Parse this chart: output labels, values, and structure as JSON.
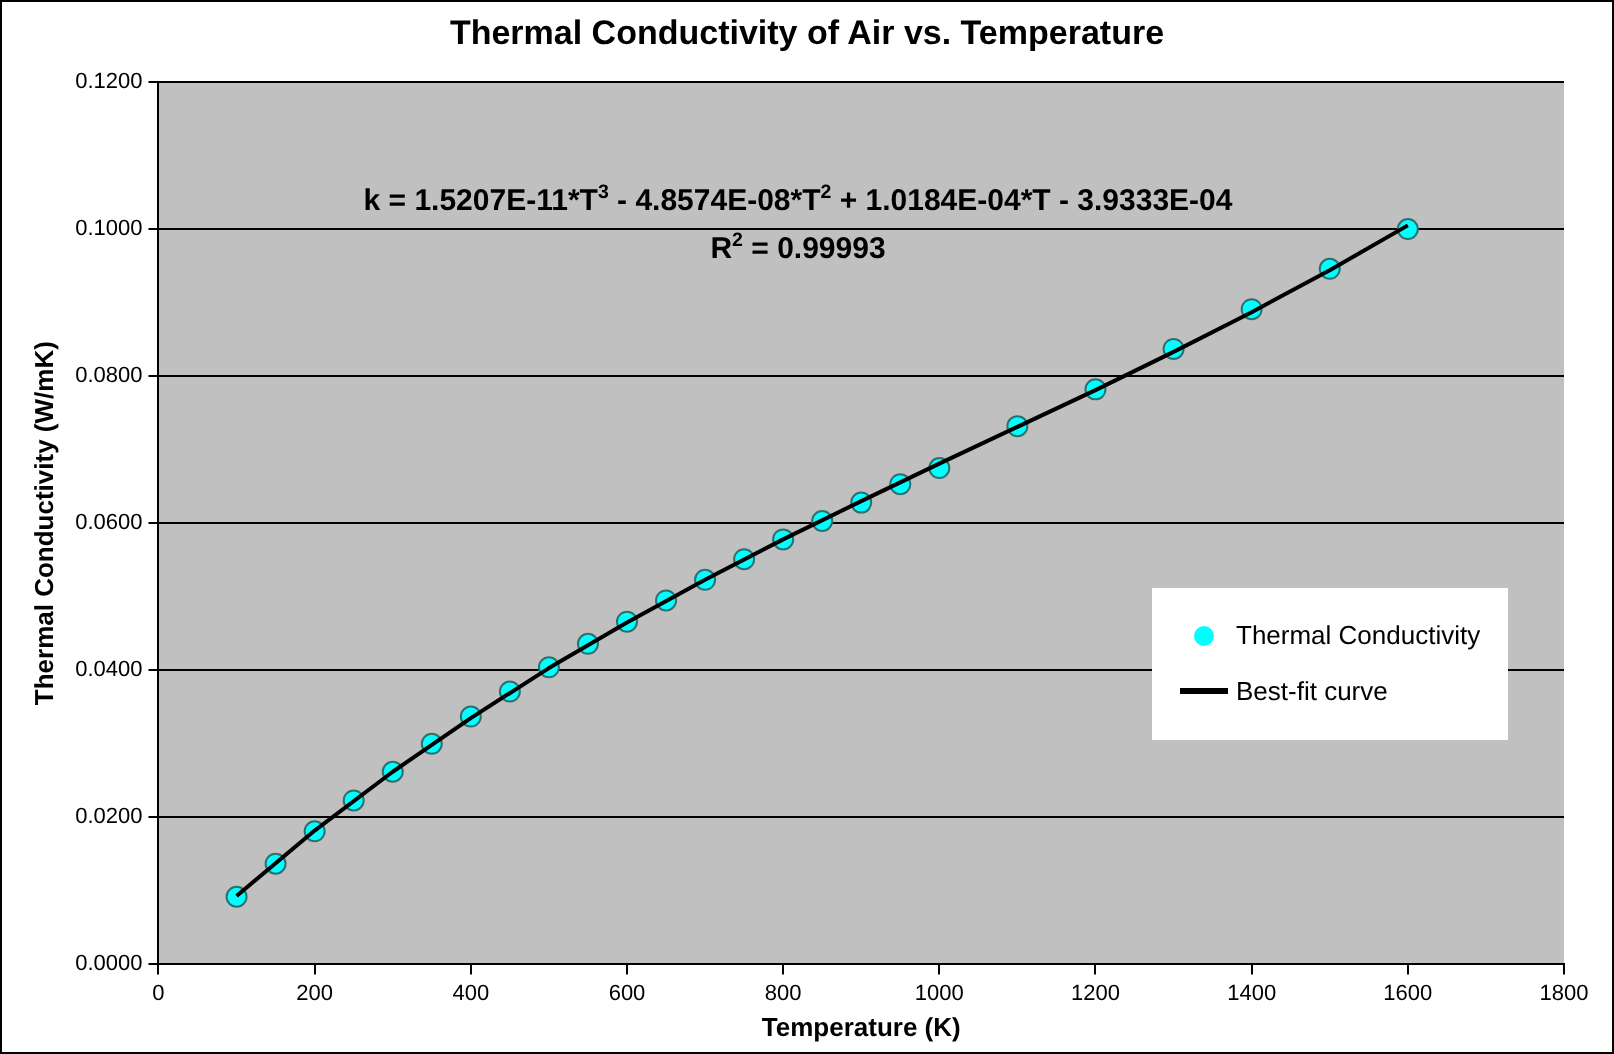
{
  "chart_data": {
    "type": "scatter",
    "title": "Thermal Conductivity of Air vs. Temperature",
    "xlabel": "Temperature (K)",
    "ylabel": "Thermal Conductivity (W/mK)",
    "annotations": [
      "k = 1.5207E-11*T$^{3}$ - 4.8574E-08*T$^{2}$ + 1.0184E-04*T - 3.9333E-04",
      "R$^{2}$ = 0.99993"
    ],
    "xlim": [
      0,
      1800
    ],
    "xticks": [
      0,
      200,
      400,
      600,
      800,
      1000,
      1200,
      1400,
      1600,
      1800
    ],
    "ylim": [
      0,
      0.12
    ],
    "yticks": [
      {
        "value": 0,
        "label": "0.0000"
      },
      {
        "value": 0.02,
        "label": "0.0200"
      },
      {
        "value": 0.04,
        "label": "0.0400"
      },
      {
        "value": 0.06,
        "label": "0.0600"
      },
      {
        "value": 0.08,
        "label": "0.0800"
      },
      {
        "value": 0.1,
        "label": "0.1000"
      },
      {
        "value": 0.12,
        "label": "0.1200"
      }
    ],
    "grid": "y",
    "legend": "right",
    "marker": "circle",
    "series": [
      {
        "name": "Thermal Conductivity",
        "type": "scatter",
        "color": "#00ffff",
        "x": [
          100,
          150,
          200,
          250,
          300,
          350,
          400,
          450,
          500,
          550,
          600,
          650,
          700,
          750,
          800,
          850,
          900,
          950,
          1000,
          1100,
          1200,
          1300,
          1400,
          1500,
          1600
        ],
        "values": [
          0.0092,
          0.0137,
          0.0181,
          0.0223,
          0.0262,
          0.03,
          0.0337,
          0.0371,
          0.0404,
          0.0436,
          0.0466,
          0.0495,
          0.0523,
          0.0551,
          0.0578,
          0.0603,
          0.0628,
          0.0653,
          0.0675,
          0.0732,
          0.0782,
          0.0837,
          0.0891,
          0.0946,
          0.1
        ]
      },
      {
        "name": "Best-fit curve",
        "type": "line",
        "color": "#000000",
        "marker": "none",
        "x": [
          100,
          200,
          300,
          400,
          500,
          600,
          700,
          800,
          900,
          1000,
          1100,
          1200,
          1300,
          1400,
          1500,
          1600
        ],
        "values": [
          0.0093,
          0.0182,
          0.0262,
          0.0335,
          0.0403,
          0.0465,
          0.0523,
          0.0578,
          0.063,
          0.0681,
          0.0731,
          0.0781,
          0.0833,
          0.0887,
          0.0944,
          0.1005
        ]
      }
    ]
  }
}
